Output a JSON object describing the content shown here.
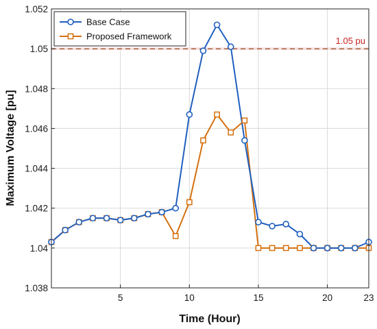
{
  "colors": {
    "base": "#1f5fbf",
    "proposed": "#d4700f",
    "reference": "#a0522d",
    "reference_label": "#cc1f1f",
    "grid": "#d9d9d9",
    "axis": "#222222"
  },
  "chart_data": {
    "type": "line",
    "xlabel": "Time (Hour)",
    "ylabel": "Maximum Voltage [pu]",
    "xlim": [
      0,
      23
    ],
    "ylim": [
      1.038,
      1.052
    ],
    "xticks": [
      5,
      10,
      15,
      20,
      23
    ],
    "yticks": [
      1.038,
      1.04,
      1.042,
      1.044,
      1.046,
      1.048,
      1.05,
      1.052
    ],
    "ytick_labels": [
      "1.038",
      "1.04",
      "1.042",
      "1.044",
      "1.046",
      "1.048",
      "1.05",
      "1.052"
    ],
    "grid": true,
    "legend_position": "top-left",
    "x": [
      0,
      1,
      2,
      3,
      4,
      5,
      6,
      7,
      8,
      9,
      10,
      11,
      12,
      13,
      14,
      15,
      16,
      17,
      18,
      19,
      20,
      21,
      22,
      23
    ],
    "series": [
      {
        "name": "Base Case",
        "marker": "circle",
        "values": [
          1.0403,
          1.0409,
          1.0413,
          1.0415,
          1.0415,
          1.0414,
          1.0415,
          1.0417,
          1.0418,
          1.042,
          1.0467,
          1.0499,
          1.0512,
          1.0501,
          1.0454,
          1.0413,
          1.0411,
          1.0412,
          1.0407,
          1.04,
          1.04,
          1.04,
          1.04,
          1.0403
        ]
      },
      {
        "name": "Proposed Framework",
        "marker": "square",
        "values": [
          1.0403,
          1.0409,
          1.0413,
          1.0415,
          1.0415,
          1.0414,
          1.0415,
          1.0417,
          1.0418,
          1.0406,
          1.0423,
          1.0454,
          1.0467,
          1.0458,
          1.0464,
          1.04,
          1.04,
          1.04,
          1.04,
          1.04,
          1.04,
          1.04,
          1.04,
          1.04
        ]
      }
    ],
    "reference_line": {
      "value": 1.05,
      "label": "1.05 pu"
    }
  }
}
